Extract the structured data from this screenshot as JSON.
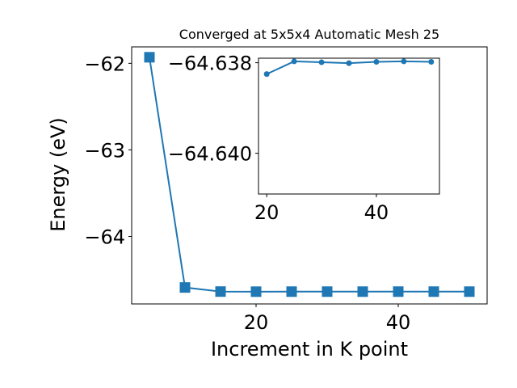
{
  "chart_data": [
    {
      "role": "main",
      "type": "line",
      "title": "Converged at 5x5x4 Automatic Mesh 25",
      "xlabel": "Increment in K point",
      "ylabel": "Energy (eV)",
      "xlim": [
        2.5,
        52.5
      ],
      "ylim": [
        -64.78,
        -61.81
      ],
      "xticks": [
        20,
        40
      ],
      "yticks": [
        -62,
        -63,
        -64
      ],
      "ytick_labels": [
        "−62",
        "−63",
        "−64"
      ],
      "xtick_labels": [
        "20",
        "40"
      ],
      "marker": "square",
      "color": "#1f77b4",
      "series": [
        {
          "x": [
            5,
            10,
            15,
            20,
            25,
            30,
            35,
            40,
            45,
            50
          ],
          "y": [
            -61.93,
            -64.59,
            -64.637,
            -64.6382,
            -64.6377,
            -64.6378,
            -64.6378,
            -64.6377,
            -64.6377,
            -64.6378
          ]
        }
      ]
    },
    {
      "role": "inset",
      "type": "line",
      "xlim": [
        18.5,
        51.5
      ],
      "ylim": [
        -64.6409,
        -64.6379
      ],
      "xticks": [
        20,
        40
      ],
      "xtick_labels": [
        "20",
        "40"
      ],
      "yticks": [
        -64.64,
        -64.638
      ],
      "ytick_labels": [
        "−64.640",
        "−64.638"
      ],
      "marker": "circle",
      "color": "#1f77b4",
      "series": [
        {
          "x": [
            20,
            25,
            30,
            35,
            40,
            45,
            50
          ],
          "y": [
            -64.63825,
            -64.63797,
            -64.63799,
            -64.63801,
            -64.63798,
            -64.63797,
            -64.63798
          ]
        }
      ]
    }
  ]
}
